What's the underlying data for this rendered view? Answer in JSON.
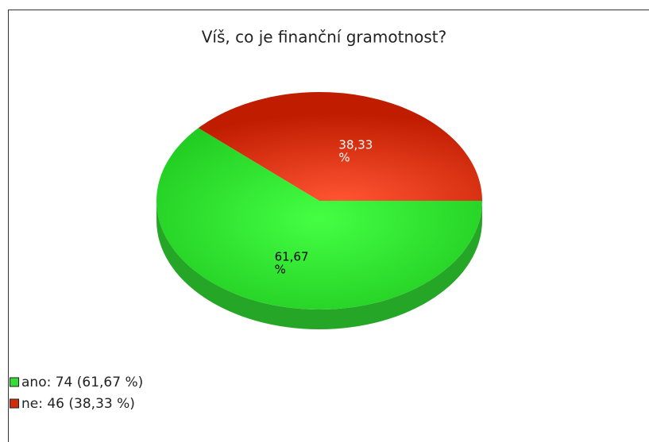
{
  "chart_data": {
    "type": "pie",
    "title": "Víš, co je finanční gramotnost?",
    "categories": [
      "ano",
      "ne"
    ],
    "values": [
      61.67,
      38.33
    ],
    "value_labels": [
      "61,67 %",
      "38,33 %"
    ],
    "legend_labels": [
      "ano: 74 (61,67 %)",
      "ne: 46 (38,33 %)"
    ],
    "colors": [
      "#33dd33",
      "#d42a0c"
    ],
    "label_colors": [
      "#000000",
      "#ffffff"
    ],
    "legend": "bottom-left"
  }
}
